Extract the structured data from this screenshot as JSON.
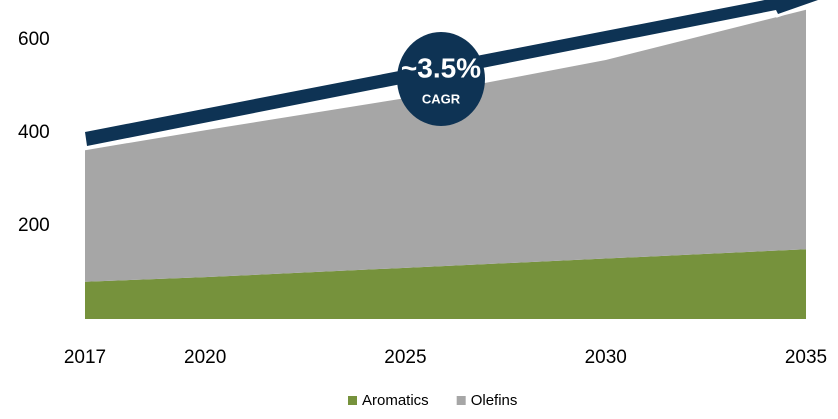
{
  "chart_data": {
    "type": "area",
    "stacked": true,
    "x": [
      2017,
      2020,
      2025,
      2030,
      2035
    ],
    "xlim": [
      2017,
      2035
    ],
    "xticks": [
      2017,
      2020,
      2025,
      2030,
      2035
    ],
    "ylim": [
      0,
      686
    ],
    "yticks": [
      200,
      400,
      600
    ],
    "series": [
      {
        "name": "Aromatics",
        "color": "#76923c",
        "values": [
          80,
          90,
          110,
          130,
          150
        ]
      },
      {
        "name": "Olefins",
        "color": "#a6a6a6",
        "values": [
          283,
          316,
          365,
          427,
          515
        ]
      }
    ],
    "annotations": [
      "~3.5%",
      "CAGR"
    ],
    "legend": "bottom"
  }
}
